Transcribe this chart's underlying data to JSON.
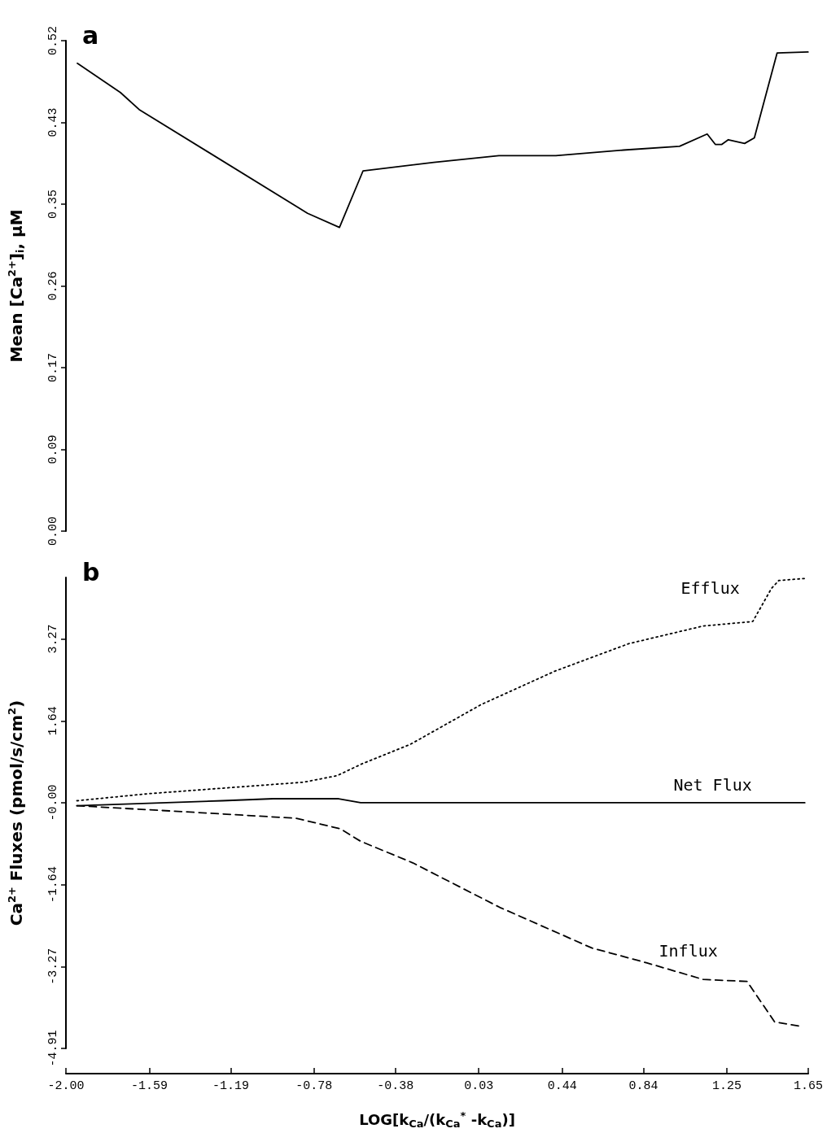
{
  "chart_data": [
    {
      "type": "line",
      "ylabel": "Mean [Ca$^{2+}$]$_{i}$, μM",
      "annotations": [
        "a"
      ],
      "xlim": [
        -2.0,
        1.65
      ],
      "ylim": [
        0,
        0.52
      ],
      "yticks": [
        {
          "value": 0,
          "label": "0.00"
        },
        {
          "value": 0.0867,
          "label": "0.09"
        },
        {
          "value": 0.1733,
          "label": "0.17"
        },
        {
          "value": 0.26,
          "label": "0.26"
        },
        {
          "value": 0.3467,
          "label": "0.35"
        },
        {
          "value": 0.4333,
          "label": "0.43"
        },
        {
          "value": 0.52,
          "label": "0.52"
        }
      ],
      "tick_labels": "y",
      "series": [
        {
          "color": "#000000",
          "line_style": "solid",
          "x": [
            -1.944,
            -1.732,
            -1.64,
            -0.812,
            -0.655,
            -0.539,
            -0.191,
            0.129,
            0.409,
            0.741,
            1.017,
            1.153,
            1.193,
            1.225,
            1.257,
            1.337,
            1.385,
            1.497,
            1.649
          ],
          "values": [
            0.496,
            0.465,
            0.447,
            0.337,
            0.322,
            0.382,
            0.391,
            0.398,
            0.398,
            0.404,
            0.408,
            0.421,
            0.41,
            0.41,
            0.415,
            0.411,
            0.417,
            0.507,
            0.508
          ]
        }
      ]
    },
    {
      "type": "line",
      "xlabel": "LOG[k$_{Ca}$/(k$_{Ca}$$^{*}$ -k$_{Ca}$)]",
      "ylabel": "Ca$^{2+}$ Fluxes (pmol/s/cm$^{2}$)",
      "annotations": [
        "b"
      ],
      "xlim": [
        -2.0,
        1.65
      ],
      "xticks": [
        {
          "value": -2.0,
          "label": "-2.00"
        },
        {
          "value": -1.59,
          "label": "-1.59"
        },
        {
          "value": -1.19,
          "label": "-1.19"
        },
        {
          "value": -0.78,
          "label": "-0.78"
        },
        {
          "value": -0.38,
          "label": "-0.38"
        },
        {
          "value": 0.03,
          "label": "0.03"
        },
        {
          "value": 0.44,
          "label": "0.44"
        },
        {
          "value": 0.84,
          "label": "0.84"
        },
        {
          "value": 1.25,
          "label": "1.25"
        },
        {
          "value": 1.65,
          "label": "1.65"
        }
      ],
      "ylim": [
        -4.908,
        4.5
      ],
      "yticks": [
        {
          "value": -4.908,
          "label": "-4.91"
        },
        {
          "value": -3.272,
          "label": "-3.27"
        },
        {
          "value": -1.636,
          "label": "-1.64"
        },
        {
          "value": 0,
          "label": "-0.00"
        },
        {
          "value": 1.636,
          "label": "1.64"
        },
        {
          "value": 3.272,
          "label": "3.27"
        }
      ],
      "series": [
        {
          "name": "Efflux",
          "color": "#000000",
          "line_style": "dotted",
          "x": [
            -1.946,
            -1.596,
            -1.232,
            -0.832,
            -0.667,
            -0.543,
            -0.305,
            0.041,
            0.405,
            0.769,
            1.133,
            1.377,
            1.469,
            1.505,
            1.633
          ],
          "values": [
            0.04,
            0.18,
            0.29,
            0.41,
            0.54,
            0.78,
            1.17,
            1.96,
            2.63,
            3.18,
            3.53,
            3.62,
            4.28,
            4.44,
            4.48
          ]
        },
        {
          "name": "Net Flux",
          "color": "#000000",
          "line_style": "solid",
          "x": [
            -1.946,
            -1.232,
            -0.98,
            -0.659,
            -0.551,
            1.633
          ],
          "values": [
            -0.06,
            0.04,
            0.08,
            0.08,
            0,
            0
          ]
        },
        {
          "name": "Influx",
          "color": "#000000",
          "line_style": "dashed",
          "x": [
            -1.946,
            -1.416,
            -0.868,
            -0.651,
            -0.551,
            -0.295,
            0.133,
            0.585,
            0.857,
            1.133,
            1.349,
            1.485,
            1.605
          ],
          "values": [
            -0.06,
            -0.18,
            -0.31,
            -0.52,
            -0.77,
            -1.2,
            -2.09,
            -2.9,
            -3.2,
            -3.53,
            -3.57,
            -4.38,
            -4.46
          ]
        }
      ]
    }
  ]
}
